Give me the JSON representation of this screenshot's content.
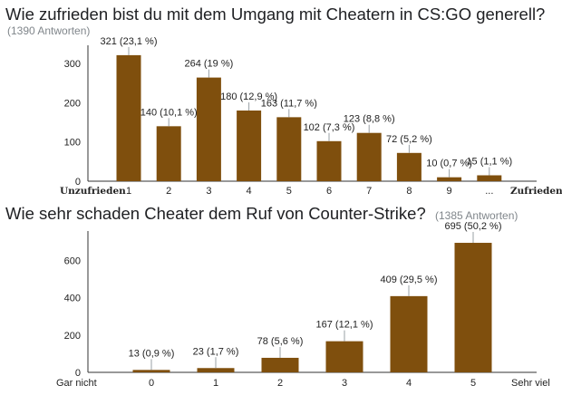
{
  "chart_data": [
    {
      "type": "bar",
      "title": "Wie zufrieden bist du mit dem Umgang mit Cheatern in CS:GO generell?",
      "response_count": "(1390 Antworten)",
      "categories": [
        "1",
        "2",
        "3",
        "4",
        "5",
        "6",
        "7",
        "8",
        "9",
        "..."
      ],
      "values": [
        321,
        140,
        264,
        180,
        163,
        102,
        123,
        72,
        10,
        15
      ],
      "data_labels": [
        "321 (23,1 %)",
        "140 (10,1 %)",
        "264 (19 %)",
        "180 (12,9 %)",
        "163 (11,7 %)",
        "102 (7,3 %)",
        "123 (8,8 %)",
        "72 (5,2 %)",
        "10 (0,7 %)",
        "15 (1,1 %)"
      ],
      "ylim": [
        0,
        330
      ],
      "yticks": [
        0,
        100,
        200,
        300
      ],
      "x_start_label": "Unzufrieden",
      "x_end_label": "Zufrieden",
      "bar_color": "#7f4f0d",
      "grid": false
    },
    {
      "type": "bar",
      "title": "Wie sehr schaden Cheater dem Ruf von Counter-Strike?",
      "response_count": "(1385 Antworten)",
      "categories": [
        "0",
        "1",
        "2",
        "3",
        "4",
        "5"
      ],
      "values": [
        13,
        23,
        78,
        167,
        409,
        695
      ],
      "data_labels": [
        "13 (0,9 %)",
        "23 (1,7 %)",
        "78 (5,6 %)",
        "167 (12,1 %)",
        "409 (29,5 %)",
        "695 (50,2 %)"
      ],
      "ylim": [
        0,
        700
      ],
      "yticks": [
        0,
        200,
        400,
        600
      ],
      "x_start_label": "Gar nicht",
      "x_end_label": "Sehr viel",
      "bar_color": "#7f4f0d",
      "grid": false
    }
  ]
}
